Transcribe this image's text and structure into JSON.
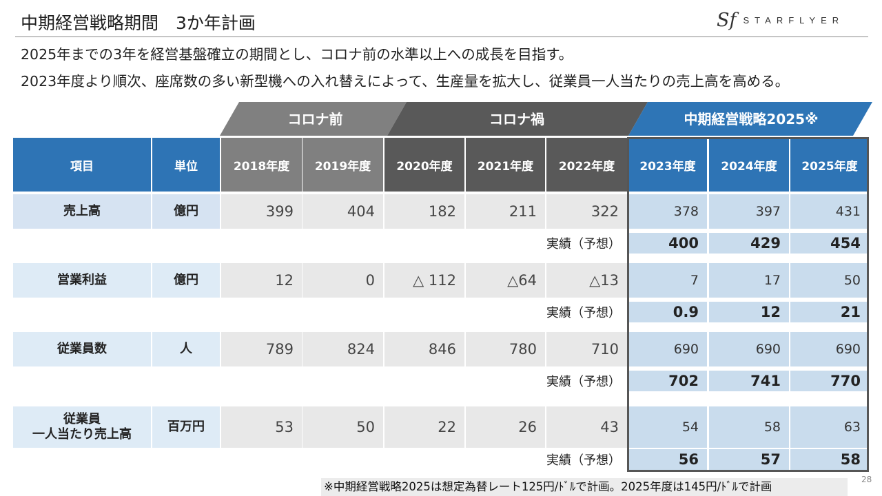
{
  "header": {
    "title": "中期経営戦略期間　3か年計画",
    "logo_mark": "Sf",
    "logo_text": "STARFLYER"
  },
  "description": {
    "line1": "2025年までの3年を経営基盤確立の期間とし、コロナ前の水準以上への成長を目指す。",
    "line2": "2023年度より順次、座席数の多い新型機への入れ替えによって、生産量を拡大し、従業員一人当たりの売上高を高める。"
  },
  "banners": {
    "pre": "コロナ前",
    "during": "コロナ禍",
    "plan": "中期経営戦略2025※"
  },
  "table": {
    "col_item": "項目",
    "col_unit": "単位",
    "years": [
      "2018年度",
      "2019年度",
      "2020年度",
      "2021年度",
      "2022年度",
      "2023年度",
      "2024年度",
      "2025年度"
    ],
    "actual_label": "実績（予想）",
    "rows": [
      {
        "item": "売上高",
        "unit": "億円",
        "values": [
          "399",
          "404",
          "182",
          "211",
          "322",
          "378",
          "397",
          "431"
        ],
        "actuals": [
          "400",
          "429",
          "454"
        ]
      },
      {
        "item": "営業利益",
        "unit": "億円",
        "values": [
          "12",
          "0",
          "△ 112",
          "△64",
          "△13",
          "7",
          "17",
          "50"
        ],
        "actuals": [
          "0.9",
          "12",
          "21"
        ]
      },
      {
        "item": "従業員数",
        "unit": "人",
        "values": [
          "789",
          "824",
          "846",
          "780",
          "710",
          "690",
          "690",
          "690"
        ],
        "actuals": [
          "702",
          "741",
          "770"
        ]
      },
      {
        "item": "従業員\n一人当たり売上高",
        "unit": "百万円",
        "values": [
          "53",
          "50",
          "22",
          "26",
          "43",
          "54",
          "58",
          "63"
        ],
        "actuals": [
          "56",
          "57",
          "58"
        ]
      }
    ]
  },
  "footnote": "※中期経営戦略2025は想定為替レート125円/ﾄﾞﾙで計画。2025年度は145円/ﾄﾞﾙで計画",
  "page_number": "28",
  "colors": {
    "blue_header": "#2e74b5",
    "gray_pre": "#808080",
    "gray_during": "#595959",
    "blue_banner": "#2e75b6",
    "label_blue": "#d6e3f2",
    "label_blue_alt": "#deebf6",
    "num_gray": "#e8e8e8",
    "plan_blue": "#c9dced"
  }
}
